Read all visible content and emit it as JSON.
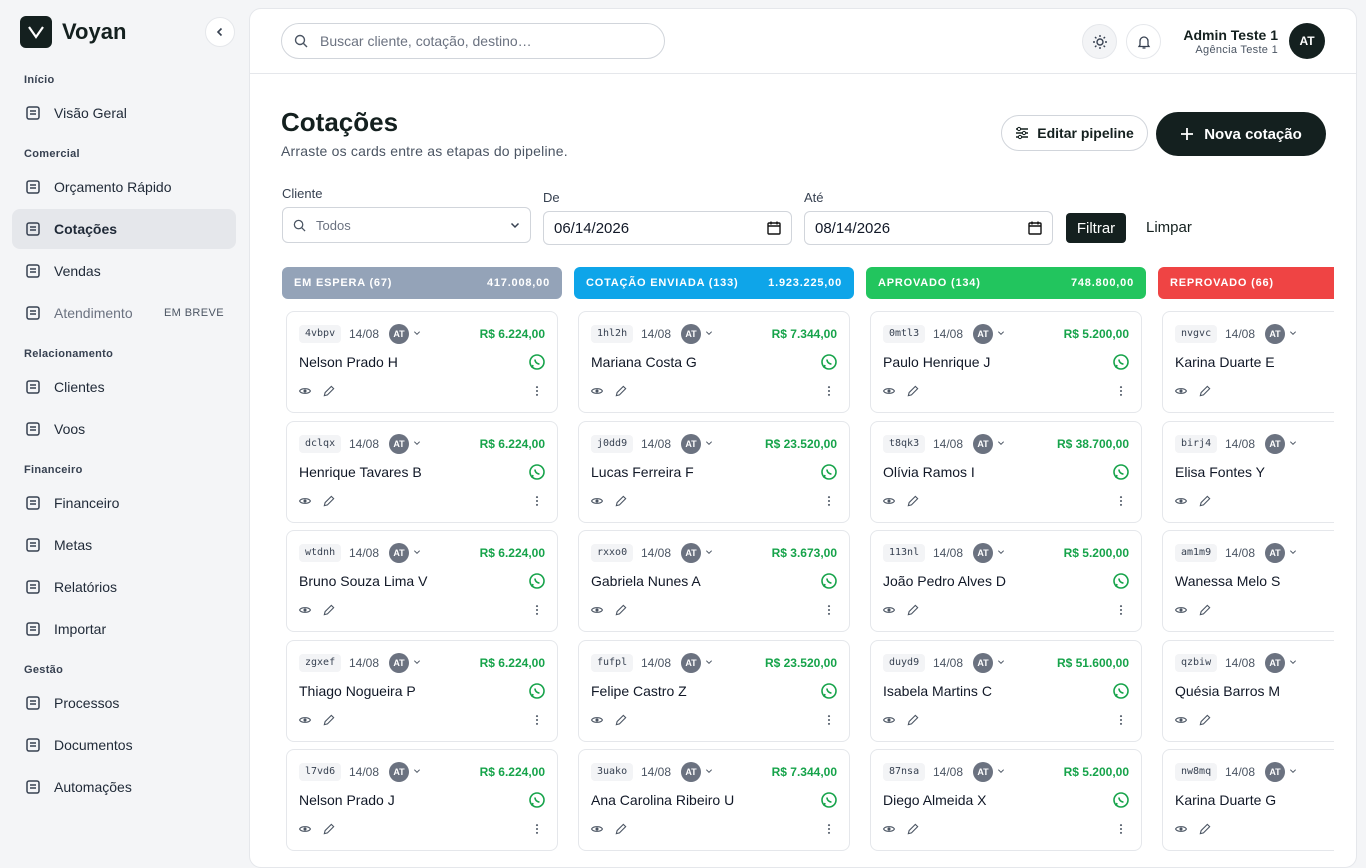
{
  "sidebar": {
    "brand": "Voyan",
    "sections": [
      {
        "label": "Início",
        "items": [
          {
            "label": "Visão Geral"
          }
        ]
      },
      {
        "label": "Comercial",
        "items": [
          {
            "label": "Orçamento Rápido"
          },
          {
            "label": "Cotações",
            "active": true
          },
          {
            "label": "Vendas"
          },
          {
            "label": "Atendimento",
            "badge": "EM BREVE"
          }
        ]
      },
      {
        "label": "Relacionamento",
        "items": [
          {
            "label": "Clientes"
          },
          {
            "label": "Voos"
          }
        ]
      },
      {
        "label": "Financeiro",
        "items": [
          {
            "label": "Financeiro"
          },
          {
            "label": "Metas"
          },
          {
            "label": "Relatórios"
          },
          {
            "label": "Importar"
          }
        ]
      },
      {
        "label": "Gestão",
        "items": [
          {
            "label": "Processos"
          },
          {
            "label": "Documentos"
          },
          {
            "label": "Automações"
          }
        ]
      }
    ]
  },
  "topbar": {
    "search_placeholder": "Buscar cliente, cotação, destino…",
    "user_name": "Admin Teste 1",
    "user_agency": "Agência Teste 1",
    "avatar": "AT"
  },
  "header": {
    "title": "Cotações",
    "subtitle": "Arraste os cards entre as etapas do pipeline.",
    "edit_button": "Editar pipeline",
    "new_button": "Nova cotação"
  },
  "filters": {
    "client_label": "Cliente",
    "client_value": "Todos",
    "from_label": "De",
    "from_value": "06/14/2026",
    "to_label": "Até",
    "to_value": "08/14/2026",
    "apply": "Filtrar",
    "clear": "Limpar"
  },
  "board": {
    "columns": [
      {
        "title": "EM ESPERA (67)",
        "total": "417.008,00",
        "color": "#94a3b8",
        "cards": [
          {
            "code": "4vbpv",
            "date": "14/08",
            "owner": "AT",
            "value": "R$ 6.224,00",
            "name": "Nelson Prado H"
          },
          {
            "code": "dclqx",
            "date": "14/08",
            "owner": "AT",
            "value": "R$ 6.224,00",
            "name": "Henrique Tavares B"
          },
          {
            "code": "wtdnh",
            "date": "14/08",
            "owner": "AT",
            "value": "R$ 6.224,00",
            "name": "Bruno Souza Lima V"
          },
          {
            "code": "zgxef",
            "date": "14/08",
            "owner": "AT",
            "value": "R$ 6.224,00",
            "name": "Thiago Nogueira P"
          },
          {
            "code": "l7vd6",
            "date": "14/08",
            "owner": "AT",
            "value": "R$ 6.224,00",
            "name": "Nelson Prado J"
          }
        ]
      },
      {
        "title": "COTAÇÃO ENVIADA (133)",
        "total": "1.923.225,00",
        "color": "#0ea5e9",
        "cards": [
          {
            "code": "1hl2h",
            "date": "14/08",
            "owner": "AT",
            "value": "R$ 7.344,00",
            "name": "Mariana Costa G"
          },
          {
            "code": "j0dd9",
            "date": "14/08",
            "owner": "AT",
            "value": "R$ 23.520,00",
            "name": "Lucas Ferreira F"
          },
          {
            "code": "rxxo0",
            "date": "14/08",
            "owner": "AT",
            "value": "R$ 3.673,00",
            "name": "Gabriela Nunes A"
          },
          {
            "code": "fufpl",
            "date": "14/08",
            "owner": "AT",
            "value": "R$ 23.520,00",
            "name": "Felipe Castro Z"
          },
          {
            "code": "3uako",
            "date": "14/08",
            "owner": "AT",
            "value": "R$ 7.344,00",
            "name": "Ana Carolina Ribeiro U"
          }
        ]
      },
      {
        "title": "APROVADO (134)",
        "total": "748.800,00",
        "color": "#22c55e",
        "cards": [
          {
            "code": "0mtl3",
            "date": "14/08",
            "owner": "AT",
            "value": "R$ 5.200,00",
            "name": "Paulo Henrique J"
          },
          {
            "code": "t8qk3",
            "date": "14/08",
            "owner": "AT",
            "value": "R$ 38.700,00",
            "name": "Olívia Ramos I"
          },
          {
            "code": "113nl",
            "date": "14/08",
            "owner": "AT",
            "value": "R$ 5.200,00",
            "name": "João Pedro Alves D"
          },
          {
            "code": "duyd9",
            "date": "14/08",
            "owner": "AT",
            "value": "R$ 51.600,00",
            "name": "Isabela Martins C"
          },
          {
            "code": "87nsa",
            "date": "14/08",
            "owner": "AT",
            "value": "R$ 5.200,00",
            "name": "Diego Almeida X"
          }
        ]
      },
      {
        "title": "REPROVADO (66)",
        "color": "#ef4444",
        "cards": [
          {
            "code": "nvgvc",
            "date": "14/08",
            "owner": "AT",
            "name": "Karina Duarte E"
          },
          {
            "code": "birj4",
            "date": "14/08",
            "owner": "AT",
            "name": "Elisa Fontes Y"
          },
          {
            "code": "am1m9",
            "date": "14/08",
            "owner": "AT",
            "name": "Wanessa Melo S"
          },
          {
            "code": "qzbiw",
            "date": "14/08",
            "owner": "AT",
            "name": "Quésia Barros M"
          },
          {
            "code": "nw8mq",
            "date": "14/08",
            "owner": "AT",
            "name": "Karina Duarte G"
          }
        ]
      }
    ]
  }
}
